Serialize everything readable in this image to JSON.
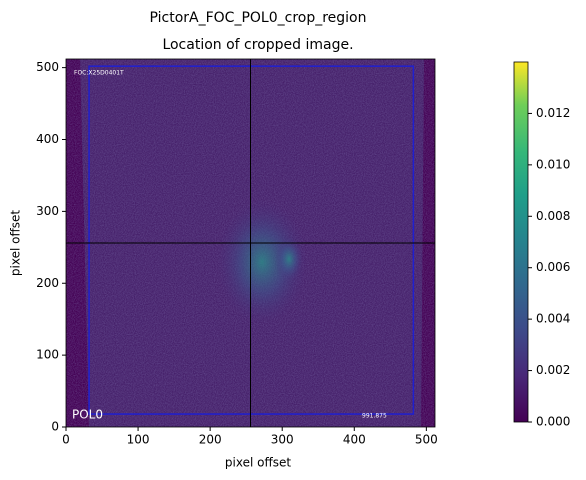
{
  "chart_data": {
    "type": "image",
    "title": "PictorA_FOC_POL0_crop_region",
    "subtitle": "Location of cropped image.",
    "xlabel": "pixel offset",
    "ylabel": "pixel offset",
    "xlim": [
      0,
      512
    ],
    "ylim": [
      0,
      512
    ],
    "xticks": [
      0,
      100,
      200,
      300,
      400,
      500
    ],
    "yticks": [
      0,
      100,
      200,
      300,
      400,
      500
    ],
    "crosshair": [
      256,
      256
    ],
    "crop_box": [
      32,
      18,
      482,
      502
    ],
    "annotations": [
      "FOC:X25D0401T",
      "POL0",
      "991.875"
    ],
    "colormap": "viridis",
    "clim": [
      0,
      0.014
    ],
    "cticks": [
      {
        "value": 0,
        "label": "0.000"
      },
      {
        "value": 0.002,
        "label": "0.002"
      },
      {
        "value": 0.004,
        "label": "0.004"
      },
      {
        "value": 0.006,
        "label": "0.006"
      },
      {
        "value": 0.008,
        "label": "0.008"
      },
      {
        "value": 0.01,
        "label": "0.010"
      },
      {
        "value": 0.012,
        "label": "0.012"
      }
    ]
  }
}
